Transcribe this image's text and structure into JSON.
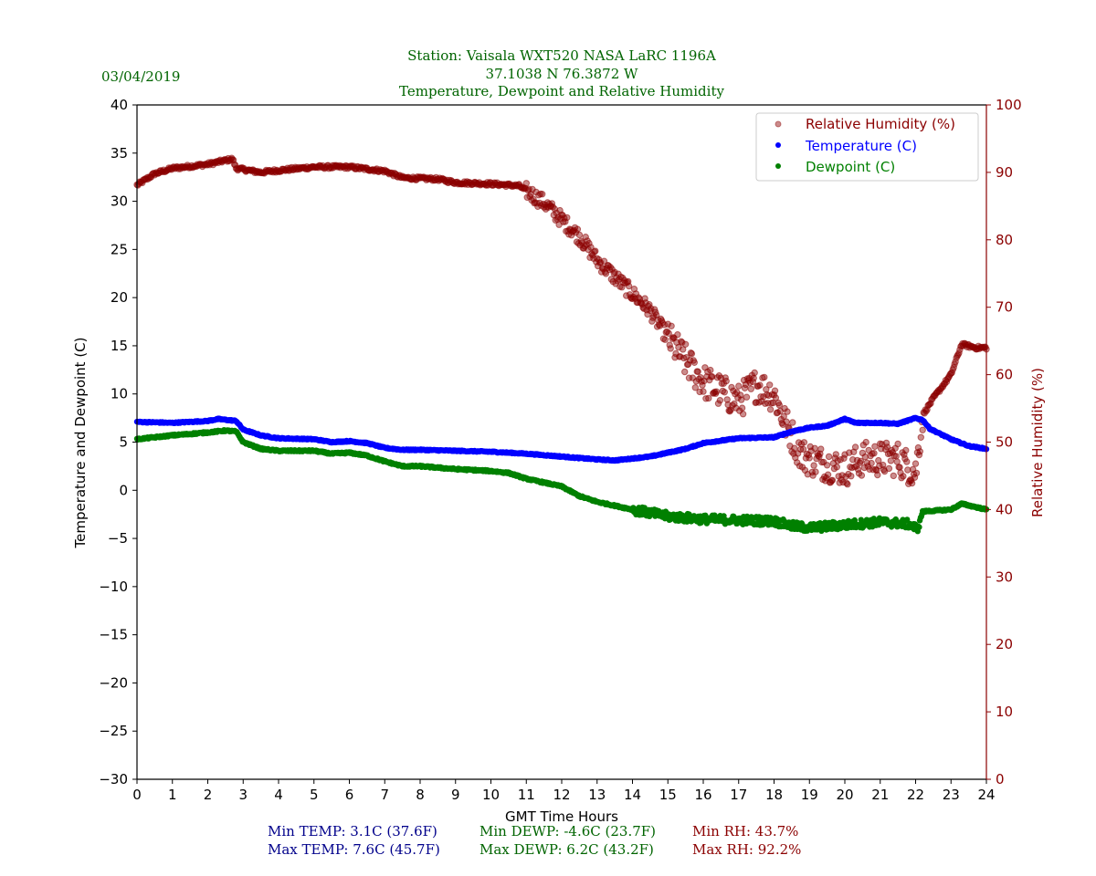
{
  "header": {
    "date": "03/04/2019",
    "title_lines": [
      "Station:  Vaisala WXT520  NASA LaRC 1196A",
      "37.1038 N 76.3872 W",
      "Temperature, Dewpoint and Relative Humidity"
    ]
  },
  "colors": {
    "title": "#006400",
    "temperature": "#0000ff",
    "dewpoint": "#008000",
    "rh": "#8b0000",
    "min_max_temp": "#00008b",
    "min_max_dewp": "#006400",
    "min_max_rh": "#8b0000"
  },
  "chart_data": {
    "type": "scatter",
    "title": "Station:  Vaisala WXT520  NASA LaRC 1196A / 37.1038 N 76.3872 W / Temperature, Dewpoint and Relative Humidity",
    "xlabel": "GMT Time Hours",
    "ylabel": "Temperature and Dewpoint (C)",
    "y2label": "Relative Humidity (%)",
    "xlim": [
      0,
      24
    ],
    "ylim": [
      -30,
      40
    ],
    "y2lim": [
      0,
      100
    ],
    "xticks": [
      "0",
      "1",
      "2",
      "3",
      "4",
      "5",
      "6",
      "7",
      "8",
      "9",
      "10",
      "11",
      "12",
      "13",
      "14",
      "15",
      "16",
      "17",
      "18",
      "19",
      "20",
      "21",
      "22",
      "23",
      "24"
    ],
    "yticks": [
      "40",
      "35",
      "30",
      "25",
      "20",
      "15",
      "10",
      "5",
      "0",
      "−5",
      "−10",
      "−15",
      "−20",
      "−25",
      "−30"
    ],
    "y2ticks": [
      "100",
      "90",
      "80",
      "70",
      "60",
      "50",
      "40",
      "30",
      "20",
      "10",
      "0"
    ],
    "grid": false,
    "legend_position": "top-right",
    "legend": [
      "Relative Humidity (%)",
      "Temperature (C)",
      "Dewpoint (C)"
    ],
    "series": [
      {
        "name": "Relative Humidity (%)",
        "axis": "right",
        "x": [
          0,
          0.5,
          1,
          2,
          2.7,
          2.8,
          3.5,
          4,
          5,
          6,
          7,
          7.5,
          8.5,
          9,
          10,
          10.8,
          11.5,
          12,
          12.5,
          13,
          13.5,
          14,
          14.5,
          15,
          15.5,
          16,
          16.5,
          17,
          17.5,
          18,
          18.3,
          18.8,
          19.3,
          20,
          20.5,
          21,
          21.5,
          22,
          22.2,
          22.5,
          23,
          23.3,
          23.7,
          24
        ],
        "y": [
          88.1,
          89.8,
          90.6,
          91.2,
          92.0,
          90.6,
          90.0,
          90.3,
          90.8,
          90.8,
          90.2,
          89.2,
          89.0,
          88.5,
          88.3,
          88.0,
          85.5,
          83.0,
          80.5,
          77.0,
          74.5,
          72.0,
          69.5,
          65.5,
          62.0,
          59.0,
          57.5,
          56.0,
          58.5,
          57.0,
          53.0,
          48.0,
          47.0,
          46.0,
          47.5,
          47.5,
          47.5,
          45.5,
          54.0,
          56.5,
          60.0,
          64.5,
          64.0,
          64.0
        ]
      },
      {
        "name": "Temperature (C)",
        "axis": "left",
        "x": [
          0,
          1,
          2,
          2.3,
          2.8,
          3,
          3.5,
          4,
          5,
          5.5,
          6,
          6.5,
          7,
          7.5,
          8,
          9,
          10,
          11,
          12,
          13,
          13.5,
          14,
          14.5,
          15,
          15.5,
          16,
          17,
          18,
          18.5,
          19,
          19.5,
          20,
          20.3,
          21,
          21.5,
          22,
          22.2,
          22.4,
          23,
          23.5,
          24
        ],
        "y": [
          7.1,
          7.0,
          7.2,
          7.4,
          7.2,
          6.3,
          5.7,
          5.4,
          5.3,
          5.0,
          5.1,
          4.9,
          4.4,
          4.2,
          4.2,
          4.1,
          4.0,
          3.8,
          3.5,
          3.2,
          3.1,
          3.3,
          3.5,
          3.9,
          4.3,
          4.9,
          5.4,
          5.5,
          6.1,
          6.5,
          6.7,
          7.4,
          7.0,
          7.0,
          6.9,
          7.5,
          7.3,
          6.4,
          5.3,
          4.6,
          4.3
        ]
      },
      {
        "name": "Dewpoint (C)",
        "axis": "left",
        "x": [
          0,
          1,
          2,
          2.5,
          2.8,
          3,
          3.5,
          4,
          5,
          5.5,
          6,
          6.5,
          7,
          7.5,
          8,
          9,
          10,
          10.5,
          11,
          12,
          12.5,
          13,
          13.5,
          14,
          15,
          16,
          17,
          18,
          18.5,
          19,
          20,
          21,
          21.8,
          22.05,
          22.2,
          23,
          23.3,
          24
        ],
        "y": [
          5.3,
          5.7,
          6.0,
          6.2,
          6.1,
          5.0,
          4.3,
          4.1,
          4.1,
          3.8,
          3.9,
          3.6,
          3.0,
          2.5,
          2.5,
          2.2,
          2.0,
          1.8,
          1.2,
          0.4,
          -0.6,
          -1.2,
          -1.6,
          -2.0,
          -2.7,
          -3.0,
          -3.1,
          -3.2,
          -3.7,
          -3.9,
          -3.6,
          -3.3,
          -3.5,
          -4.0,
          -2.2,
          -2.0,
          -1.4,
          -2.0
        ]
      }
    ]
  },
  "stats": {
    "min_temp": "Min TEMP: 3.1C (37.6F)",
    "max_temp": "Max TEMP: 7.6C (45.7F)",
    "min_dewp": "Min DEWP: -4.6C (23.7F)",
    "max_dewp": "Max DEWP: 6.2C (43.2F)",
    "min_rh": "Min RH: 43.7%",
    "max_rh": "Max RH: 92.2%"
  }
}
